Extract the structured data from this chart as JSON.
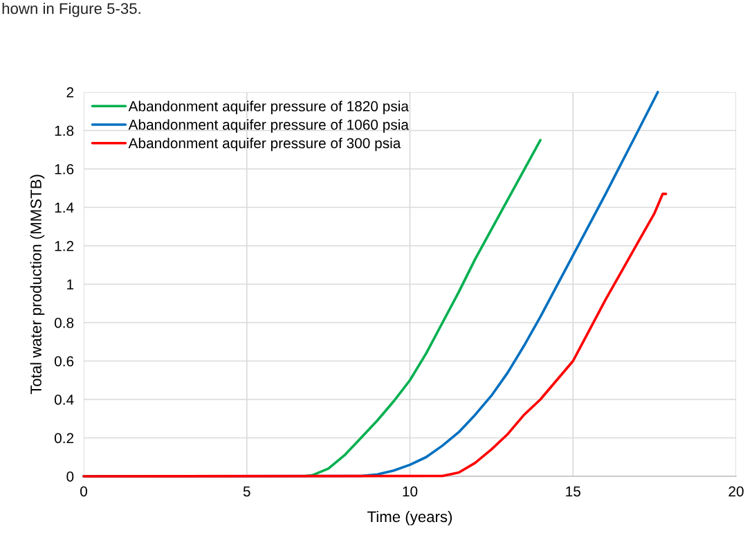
{
  "chart_data": {
    "type": "line",
    "xlabel": "Time (years)",
    "ylabel": "Total water production (MMSTB)",
    "annotations": [
      "hown in Figure 5-35."
    ],
    "xlim": [
      0,
      20
    ],
    "xticks": [
      0,
      5,
      10,
      15,
      20
    ],
    "ylim": [
      0,
      2
    ],
    "yticks": [
      0,
      0.2,
      0.4,
      0.6,
      0.8,
      1,
      1.2,
      1.4,
      1.6,
      1.8,
      2
    ],
    "grid": true,
    "legend": "top left",
    "marker": "none",
    "line_style": "solid",
    "series": [
      {
        "name": "Abandonment aquifer pressure of 1820 psia",
        "color": "#00b050",
        "x": [
          0,
          6.8,
          7,
          7.5,
          8,
          8.5,
          9,
          9.5,
          10,
          10.5,
          11,
          11.5,
          12,
          13,
          14
        ],
        "values": [
          0,
          0.002,
          0.005,
          0.04,
          0.11,
          0.2,
          0.29,
          0.39,
          0.5,
          0.64,
          0.8,
          0.96,
          1.13,
          1.44,
          1.75
        ]
      },
      {
        "name": "Abandonment aquifer pressure of 1060 psia",
        "color": "#0070c0",
        "x": [
          0,
          8.5,
          9,
          9.5,
          10,
          10.5,
          11,
          11.5,
          12,
          12.5,
          13,
          13.5,
          14,
          15,
          16,
          17,
          17.6
        ],
        "values": [
          0,
          0.002,
          0.01,
          0.03,
          0.06,
          0.1,
          0.16,
          0.23,
          0.32,
          0.42,
          0.54,
          0.68,
          0.83,
          1.15,
          1.47,
          1.8,
          2.0
        ]
      },
      {
        "name": "Abandonment aquifer pressure of 300 psia",
        "color": "#ff0000",
        "x": [
          0,
          11,
          11.5,
          12,
          12.5,
          13,
          13.5,
          14,
          14.5,
          15,
          15.5,
          16,
          16.5,
          17,
          17.5,
          17.75,
          17.85
        ],
        "values": [
          0,
          0.002,
          0.02,
          0.07,
          0.14,
          0.22,
          0.32,
          0.4,
          0.5,
          0.6,
          0.76,
          0.92,
          1.07,
          1.22,
          1.37,
          1.47,
          1.47
        ]
      }
    ]
  }
}
